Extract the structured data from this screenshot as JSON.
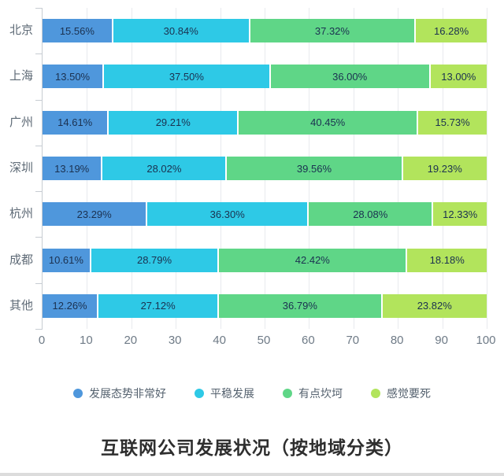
{
  "chart_data": {
    "type": "bar",
    "orientation": "horizontal-stacked",
    "title": "互联网公司发展状况（按地域分类）",
    "categories": [
      "北京",
      "上海",
      "广州",
      "深圳",
      "杭州",
      "成都",
      "其他"
    ],
    "series": [
      {
        "name": "发展态势非常好",
        "color": "#4f97dc",
        "values": [
          15.56,
          13.5,
          14.61,
          13.19,
          23.29,
          10.61,
          12.26
        ]
      },
      {
        "name": "平稳发展",
        "color": "#2ec9e6",
        "values": [
          30.84,
          37.5,
          29.21,
          28.02,
          36.3,
          28.79,
          27.12
        ]
      },
      {
        "name": "有点坎坷",
        "color": "#5fd687",
        "values": [
          37.32,
          36.0,
          40.45,
          39.56,
          28.08,
          42.42,
          36.79
        ]
      },
      {
        "name": "感觉要死",
        "color": "#b2e45c",
        "values": [
          16.28,
          13.0,
          15.73,
          19.23,
          12.33,
          18.18,
          23.82
        ]
      }
    ],
    "value_label_suffix": "%",
    "xlim": [
      0,
      100
    ],
    "x_ticks": [
      0,
      10,
      20,
      30,
      40,
      50,
      60,
      70,
      80,
      90,
      100
    ],
    "grid": true,
    "legend_position": "bottom",
    "colors": {
      "grid_line": "#e8eaee",
      "axis_line": "#c7ccd2",
      "bar_label_text": "#1b3150",
      "category_label_text": "#5e6a76",
      "tick_label_text": "#6e7a86",
      "title_text": "#2e2e2e"
    }
  }
}
